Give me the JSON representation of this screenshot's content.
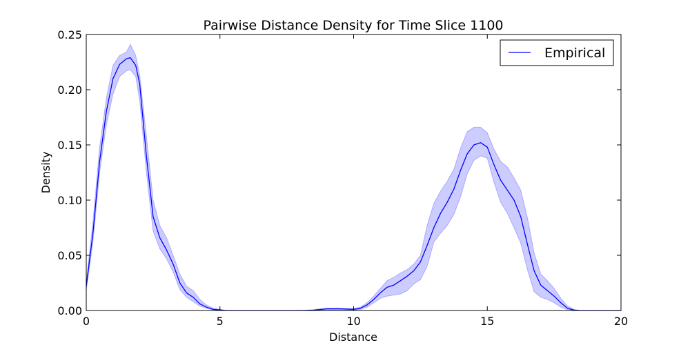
{
  "chart_data": {
    "type": "line",
    "title": "Pairwise Distance Density for Time Slice 1100",
    "xlabel": "Distance",
    "ylabel": "Density",
    "xlim": [
      0,
      20
    ],
    "ylim": [
      0,
      0.25
    ],
    "x_ticks": [
      "0",
      "5",
      "10",
      "15",
      "20"
    ],
    "y_ticks": [
      "0.00",
      "0.05",
      "0.10",
      "0.15",
      "0.20",
      "0.25"
    ],
    "grid": false,
    "legend_position": "top-right",
    "colors": {
      "line": "#0000ff",
      "band": "#0000ff"
    },
    "series": [
      {
        "name": "Empirical",
        "x": [
          0.0,
          0.25,
          0.5,
          0.75,
          1.0,
          1.25,
          1.5,
          1.65,
          1.85,
          2.0,
          2.25,
          2.5,
          2.75,
          3.0,
          3.25,
          3.5,
          3.75,
          4.0,
          4.25,
          4.5,
          4.75,
          5.0,
          5.25,
          5.5,
          6.0,
          7.0,
          8.0,
          8.5,
          9.0,
          9.5,
          10.0,
          10.25,
          10.5,
          10.75,
          11.0,
          11.25,
          11.5,
          11.75,
          12.0,
          12.25,
          12.5,
          12.75,
          13.0,
          13.25,
          13.5,
          13.75,
          14.0,
          14.25,
          14.5,
          14.75,
          15.0,
          15.25,
          15.5,
          15.75,
          16.0,
          16.25,
          16.5,
          16.75,
          17.0,
          17.25,
          17.5,
          17.75,
          18.0,
          18.25,
          18.5,
          19.0,
          20.0
        ],
        "values": [
          0.022,
          0.07,
          0.135,
          0.18,
          0.21,
          0.223,
          0.228,
          0.229,
          0.222,
          0.205,
          0.14,
          0.085,
          0.066,
          0.055,
          0.042,
          0.025,
          0.016,
          0.012,
          0.006,
          0.003,
          0.001,
          0.0005,
          0.0,
          0.0,
          0.0,
          0.0,
          0.0,
          0.0003,
          0.0015,
          0.0015,
          0.001,
          0.002,
          0.005,
          0.01,
          0.016,
          0.021,
          0.023,
          0.027,
          0.031,
          0.036,
          0.044,
          0.059,
          0.075,
          0.088,
          0.098,
          0.11,
          0.127,
          0.142,
          0.15,
          0.152,
          0.148,
          0.132,
          0.118,
          0.109,
          0.1,
          0.085,
          0.06,
          0.036,
          0.023,
          0.018,
          0.013,
          0.007,
          0.002,
          0.0003,
          0.0,
          0.0,
          0.0
        ],
        "lower": [
          0.018,
          0.062,
          0.125,
          0.168,
          0.196,
          0.212,
          0.217,
          0.218,
          0.212,
          0.19,
          0.125,
          0.072,
          0.056,
          0.047,
          0.035,
          0.019,
          0.012,
          0.008,
          0.004,
          0.002,
          0.0005,
          0.0,
          0.0,
          0.0,
          0.0,
          0.0,
          0.0,
          0.0,
          0.0005,
          0.0005,
          0.0003,
          0.001,
          0.003,
          0.007,
          0.011,
          0.013,
          0.014,
          0.015,
          0.018,
          0.024,
          0.028,
          0.04,
          0.062,
          0.07,
          0.077,
          0.087,
          0.103,
          0.124,
          0.136,
          0.14,
          0.138,
          0.116,
          0.098,
          0.088,
          0.075,
          0.061,
          0.037,
          0.017,
          0.012,
          0.01,
          0.007,
          0.003,
          0.0008,
          0.0,
          0.0,
          0.0,
          0.0
        ],
        "upper": [
          0.026,
          0.08,
          0.148,
          0.192,
          0.222,
          0.231,
          0.234,
          0.241,
          0.231,
          0.213,
          0.158,
          0.1,
          0.077,
          0.066,
          0.05,
          0.033,
          0.022,
          0.018,
          0.01,
          0.005,
          0.002,
          0.001,
          0.0,
          0.0,
          0.0,
          0.0,
          0.0,
          0.0008,
          0.0022,
          0.0022,
          0.0018,
          0.003,
          0.007,
          0.013,
          0.02,
          0.027,
          0.03,
          0.034,
          0.037,
          0.042,
          0.05,
          0.077,
          0.097,
          0.108,
          0.117,
          0.128,
          0.147,
          0.162,
          0.166,
          0.166,
          0.161,
          0.146,
          0.135,
          0.13,
          0.12,
          0.109,
          0.084,
          0.052,
          0.033,
          0.027,
          0.02,
          0.011,
          0.004,
          0.001,
          0.0,
          0.0,
          0.0
        ]
      }
    ]
  }
}
